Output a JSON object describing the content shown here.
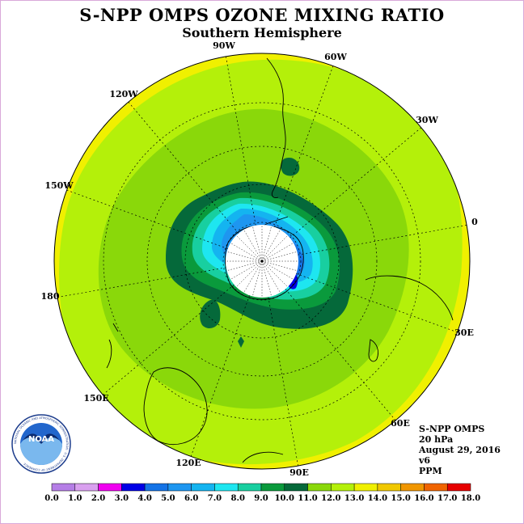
{
  "title": "S-NPP OMPS OZONE MIXING RATIO",
  "subtitle": "Southern Hemisphere",
  "longitude_labels": [
    "90W",
    "60W",
    "30W",
    "0",
    "30E",
    "60E",
    "90E",
    "120E",
    "150E",
    "180",
    "150W",
    "120W"
  ],
  "info": {
    "product": "S-NPP OMPS",
    "level": "20 hPa",
    "date": "August 29, 2016",
    "version": "v6",
    "units": "PPM"
  },
  "logo": {
    "text": "NOAA",
    "ring_text": "NATIONAL OCEANIC AND ATMOSPHERIC ADMINISTRATION · U.S. DEPARTMENT OF COMMERCE"
  },
  "colorbar": {
    "ticks": [
      "0.0",
      "1.0",
      "2.0",
      "3.0",
      "4.0",
      "5.0",
      "6.0",
      "7.0",
      "8.0",
      "9.0",
      "10.0",
      "11.0",
      "12.0",
      "13.0",
      "14.0",
      "15.0",
      "16.0",
      "17.0",
      "18.0"
    ],
    "colors": [
      "#b57ee6",
      "#d9a0ef",
      "#f000f0",
      "#0000e6",
      "#1473e6",
      "#1e96f0",
      "#14b4f0",
      "#1ee6f0",
      "#18cfa0",
      "#0a9a3c",
      "#05693a",
      "#8ad80a",
      "#b4f00a",
      "#f0f000",
      "#f0c800",
      "#f09600",
      "#f06400",
      "#e60000",
      "#7d5a3c"
    ]
  }
}
